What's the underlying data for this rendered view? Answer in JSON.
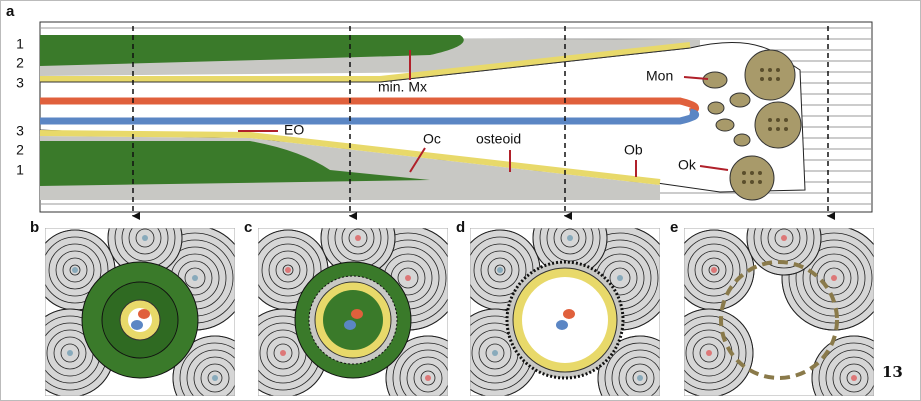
{
  "panel_labels": [
    "a",
    "b",
    "c",
    "d",
    "e"
  ],
  "layer_labels": [
    "1",
    "2",
    "3",
    "3",
    "2",
    "1"
  ],
  "annotations": [
    "min. Mx",
    "Mon",
    "EO",
    "Oc",
    "osteoid",
    "Ob",
    "Ok"
  ],
  "page_number": "13"
}
